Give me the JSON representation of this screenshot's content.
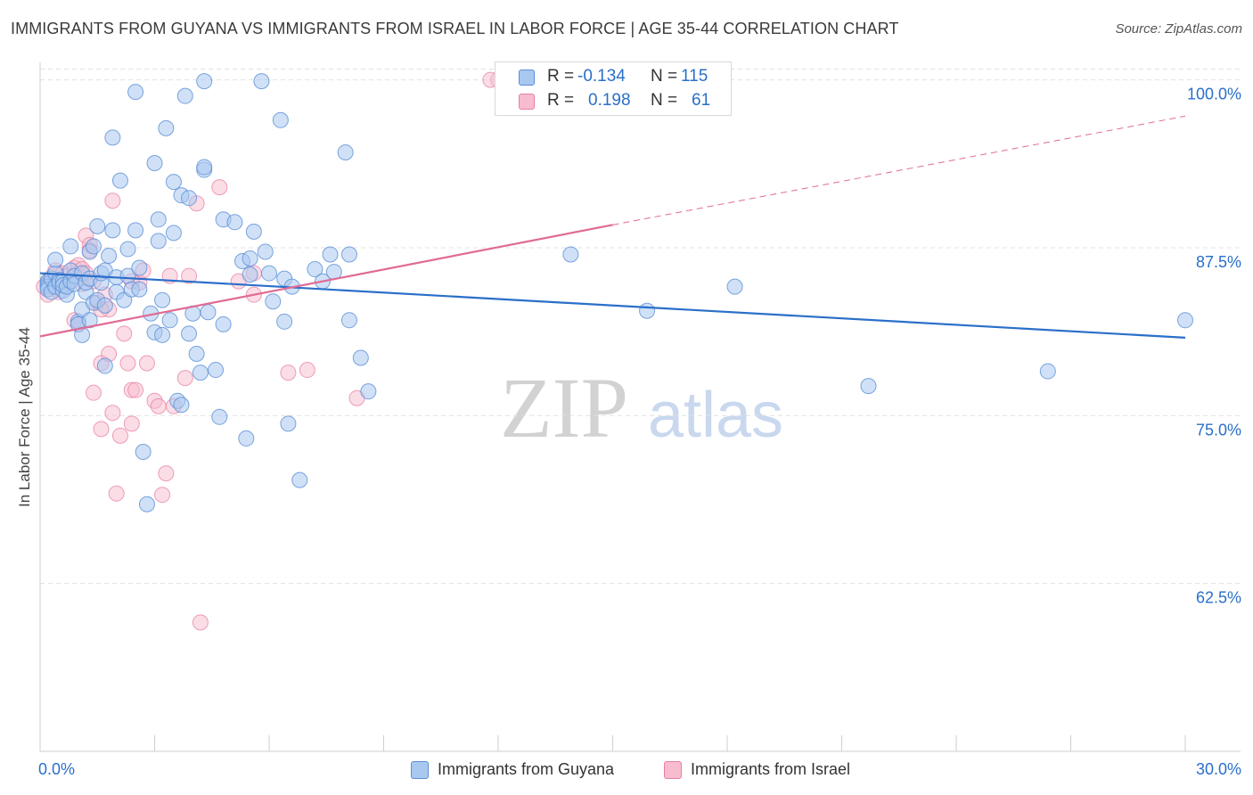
{
  "header": {
    "title": "IMMIGRANTS FROM GUYANA VS IMMIGRANTS FROM ISRAEL IN LABOR FORCE | AGE 35-44 CORRELATION CHART",
    "source": "Source: ZipAtlas.com"
  },
  "watermark": {
    "zip": "ZIP",
    "atlas": "atlas"
  },
  "legend": {
    "guyana": {
      "r_label": "R =",
      "r_value": "-0.134",
      "n_label": "N =",
      "n_value": "115"
    },
    "israel": {
      "r_label": "R =",
      "r_value": "0.198",
      "n_label": "N =",
      "n_value": "61"
    }
  },
  "colors": {
    "guyana_fill": "#a9c8f0",
    "guyana_stroke": "#5b8fd6",
    "guyana_line": "#2a6fc9",
    "israel_fill": "#f7bccd",
    "israel_stroke": "#e87fa2",
    "israel_line": "#e06b95",
    "tick_label": "#2a6fc9",
    "grid": "#e1e1e1"
  },
  "chart_data": {
    "type": "scatter",
    "title": "IMMIGRANTS FROM GUYANA VS IMMIGRANTS FROM ISRAEL IN LABOR FORCE | AGE 35-44 CORRELATION CHART",
    "xlabel": "",
    "ylabel": "In Labor Force | Age 35-44",
    "xlim": [
      0,
      30
    ],
    "ylim": [
      50,
      101.3
    ],
    "x_tick_labels": [
      "0.0%",
      "30.0%"
    ],
    "y_ticks": [
      62.5,
      75.0,
      87.5,
      100.0
    ],
    "y_tick_labels": [
      "62.5%",
      "75.0%",
      "87.5%",
      "100.0%"
    ],
    "grid": true,
    "series": [
      {
        "name": "Immigrants from Guyana",
        "points": [
          [
            0.2,
            85.0
          ],
          [
            0.2,
            84.8
          ],
          [
            0.2,
            84.6
          ],
          [
            0.2,
            84.4
          ],
          [
            0.3,
            84.2
          ],
          [
            0.3,
            85.2
          ],
          [
            0.4,
            85.6
          ],
          [
            0.4,
            86.6
          ],
          [
            0.4,
            84.6
          ],
          [
            0.5,
            85.1
          ],
          [
            0.5,
            84.9
          ],
          [
            0.6,
            84.3
          ],
          [
            0.6,
            85.0
          ],
          [
            0.6,
            84.7
          ],
          [
            0.7,
            84.0
          ],
          [
            0.7,
            84.6
          ],
          [
            0.8,
            87.6
          ],
          [
            0.8,
            85.8
          ],
          [
            0.8,
            85.0
          ],
          [
            0.9,
            85.4
          ],
          [
            0.9,
            84.8
          ],
          [
            1.0,
            82.0
          ],
          [
            1.0,
            81.8
          ],
          [
            1.1,
            85.6
          ],
          [
            1.1,
            82.9
          ],
          [
            1.1,
            81.0
          ],
          [
            1.2,
            84.2
          ],
          [
            1.2,
            84.9
          ],
          [
            1.3,
            87.2
          ],
          [
            1.3,
            85.2
          ],
          [
            1.4,
            87.6
          ],
          [
            1.4,
            83.4
          ],
          [
            1.5,
            83.6
          ],
          [
            1.5,
            89.1
          ],
          [
            1.6,
            84.9
          ],
          [
            1.6,
            85.6
          ],
          [
            1.7,
            85.8
          ],
          [
            1.7,
            83.2
          ],
          [
            1.7,
            78.7
          ],
          [
            1.8,
            86.9
          ],
          [
            1.9,
            95.7
          ],
          [
            1.9,
            88.8
          ],
          [
            2.0,
            85.3
          ],
          [
            2.0,
            84.2
          ],
          [
            2.1,
            92.5
          ],
          [
            2.2,
            83.6
          ],
          [
            2.3,
            87.4
          ],
          [
            2.3,
            85.4
          ],
          [
            2.4,
            84.4
          ],
          [
            2.5,
            99.1
          ],
          [
            2.5,
            88.8
          ],
          [
            2.6,
            84.4
          ],
          [
            2.7,
            72.3
          ],
          [
            2.8,
            68.4
          ],
          [
            2.9,
            82.6
          ],
          [
            3.0,
            93.8
          ],
          [
            3.0,
            81.2
          ],
          [
            3.1,
            89.6
          ],
          [
            3.1,
            88.0
          ],
          [
            3.2,
            83.6
          ],
          [
            3.2,
            81.0
          ],
          [
            3.3,
            96.4
          ],
          [
            3.4,
            82.1
          ],
          [
            3.5,
            92.4
          ],
          [
            3.5,
            88.6
          ],
          [
            3.6,
            76.1
          ],
          [
            3.7,
            75.8
          ],
          [
            3.7,
            91.4
          ],
          [
            3.8,
            98.8
          ],
          [
            3.9,
            91.2
          ],
          [
            3.9,
            81.1
          ],
          [
            4.0,
            82.6
          ],
          [
            4.1,
            79.6
          ],
          [
            4.2,
            78.2
          ],
          [
            4.3,
            99.9
          ],
          [
            4.3,
            93.3
          ],
          [
            4.3,
            93.5
          ],
          [
            4.4,
            82.7
          ],
          [
            4.6,
            78.4
          ],
          [
            4.7,
            74.9
          ],
          [
            4.8,
            89.6
          ],
          [
            4.8,
            81.8
          ],
          [
            5.1,
            89.4
          ],
          [
            5.3,
            86.5
          ],
          [
            5.4,
            73.3
          ],
          [
            5.5,
            86.7
          ],
          [
            5.5,
            85.5
          ],
          [
            5.6,
            88.7
          ],
          [
            5.8,
            99.9
          ],
          [
            5.9,
            87.2
          ],
          [
            6.0,
            85.6
          ],
          [
            6.1,
            83.5
          ],
          [
            6.3,
            97.0
          ],
          [
            6.4,
            82.0
          ],
          [
            6.4,
            85.2
          ],
          [
            6.5,
            74.4
          ],
          [
            6.6,
            84.6
          ],
          [
            6.8,
            70.2
          ],
          [
            7.2,
            85.9
          ],
          [
            7.4,
            85.0
          ],
          [
            7.6,
            87.0
          ],
          [
            7.7,
            85.7
          ],
          [
            8.0,
            94.6
          ],
          [
            8.1,
            82.1
          ],
          [
            8.1,
            87.0
          ],
          [
            8.4,
            79.3
          ],
          [
            8.6,
            76.8
          ],
          [
            13.9,
            87.0
          ],
          [
            15.9,
            82.8
          ],
          [
            18.2,
            84.6
          ],
          [
            21.7,
            77.2
          ],
          [
            26.4,
            78.3
          ],
          [
            30.0,
            82.1
          ],
          [
            1.3,
            82.1
          ],
          [
            2.6,
            86.0
          ]
        ]
      },
      {
        "name": "Immigrants from Israel",
        "points": [
          [
            0.1,
            84.6
          ],
          [
            0.2,
            85.0
          ],
          [
            0.2,
            84.0
          ],
          [
            0.3,
            85.3
          ],
          [
            0.4,
            85.8
          ],
          [
            0.4,
            84.6
          ],
          [
            0.5,
            84.2
          ],
          [
            0.6,
            85.6
          ],
          [
            0.7,
            85.4
          ],
          [
            0.8,
            85.0
          ],
          [
            0.9,
            86.0
          ],
          [
            0.9,
            82.1
          ],
          [
            1.0,
            81.8
          ],
          [
            1.0,
            86.2
          ],
          [
            1.1,
            85.9
          ],
          [
            1.1,
            84.8
          ],
          [
            1.2,
            88.4
          ],
          [
            1.2,
            85.6
          ],
          [
            1.3,
            87.7
          ],
          [
            1.3,
            87.3
          ],
          [
            1.4,
            85.0
          ],
          [
            1.4,
            76.7
          ],
          [
            1.5,
            83.4
          ],
          [
            1.6,
            74.0
          ],
          [
            1.6,
            78.9
          ],
          [
            1.7,
            84.0
          ],
          [
            1.8,
            82.9
          ],
          [
            1.8,
            79.6
          ],
          [
            1.9,
            91.0
          ],
          [
            1.9,
            75.2
          ],
          [
            2.0,
            69.2
          ],
          [
            2.1,
            73.5
          ],
          [
            2.2,
            81.1
          ],
          [
            2.3,
            78.9
          ],
          [
            2.4,
            76.9
          ],
          [
            2.4,
            74.4
          ],
          [
            2.5,
            76.9
          ],
          [
            2.6,
            84.9
          ],
          [
            2.7,
            85.8
          ],
          [
            2.8,
            78.9
          ],
          [
            3.0,
            76.1
          ],
          [
            3.1,
            75.7
          ],
          [
            3.2,
            69.1
          ],
          [
            3.3,
            70.7
          ],
          [
            3.4,
            85.4
          ],
          [
            3.5,
            75.7
          ],
          [
            3.8,
            77.8
          ],
          [
            3.9,
            85.4
          ],
          [
            4.1,
            90.8
          ],
          [
            4.2,
            59.6
          ],
          [
            4.7,
            92.0
          ],
          [
            5.2,
            85.0
          ],
          [
            5.6,
            84.0
          ],
          [
            5.6,
            85.6
          ],
          [
            6.5,
            78.2
          ],
          [
            7.0,
            78.4
          ],
          [
            8.3,
            76.3
          ],
          [
            12.0,
            100.0
          ],
          [
            11.8,
            100.0
          ],
          [
            1.6,
            82.9
          ],
          [
            2.4,
            85.0
          ]
        ]
      }
    ],
    "trendlines": [
      {
        "series": "Immigrants from Guyana",
        "x": [
          0,
          30
        ],
        "y": [
          85.6,
          80.8
        ],
        "style": "solid"
      },
      {
        "series": "Immigrants from Israel",
        "x": [
          0,
          15
        ],
        "y": [
          80.9,
          89.2
        ],
        "style": "solid"
      },
      {
        "series": "Immigrants from Israel",
        "x": [
          15,
          30
        ],
        "y": [
          89.2,
          97.3
        ],
        "style": "dashed"
      }
    ],
    "legend": [
      {
        "name": "Immigrants from Guyana",
        "R": -0.134,
        "N": 115
      },
      {
        "name": "Immigrants from Israel",
        "R": 0.198,
        "N": 61
      }
    ]
  }
}
